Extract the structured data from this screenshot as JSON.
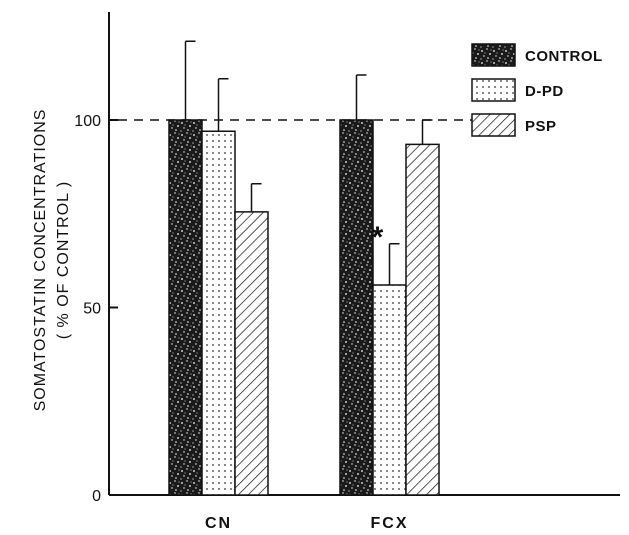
{
  "chart_data": {
    "type": "bar",
    "ylabel": [
      "SOMATOSTATIN CONCENTRATIONS",
      "( % OF CONTROL )"
    ],
    "xlabel": "",
    "ylim": [
      0,
      125
    ],
    "yticks": [
      0,
      50,
      100
    ],
    "reference_line": {
      "y": 100,
      "style": "dashed"
    },
    "categories": [
      "CN",
      "FCX"
    ],
    "series": [
      {
        "name": "CONTROL",
        "pattern": "speckled-dark",
        "values": [
          100,
          100
        ],
        "error": [
          21,
          12
        ]
      },
      {
        "name": "D-PD",
        "pattern": "dotted-light",
        "values": [
          97,
          56
        ],
        "error": [
          14,
          11
        ]
      },
      {
        "name": "PSP",
        "pattern": "diagonal-hatch",
        "values": [
          75.5,
          93.5
        ],
        "error": [
          7.5,
          6.5
        ]
      }
    ],
    "annotations": [
      {
        "text": "*",
        "category": "FCX",
        "series": "D-PD"
      }
    ],
    "legend": {
      "placement": "top-right"
    },
    "grid": false
  }
}
